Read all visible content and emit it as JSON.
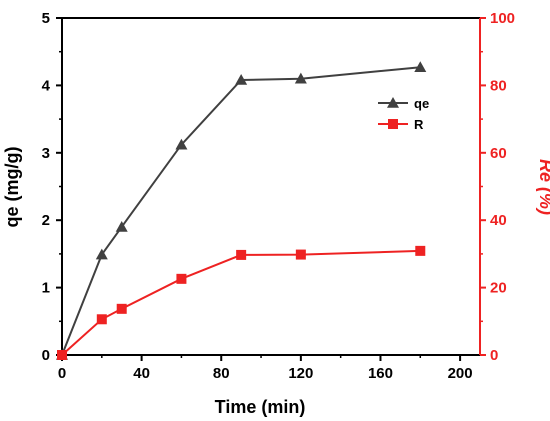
{
  "chart_data": {
    "type": "line",
    "title": "",
    "xlabel": "Time (min)",
    "ylabel_left": "qe (mg/g)",
    "ylabel_right": "Re (%)",
    "xlim": [
      0,
      210
    ],
    "ylim_left": [
      0,
      5
    ],
    "ylim_right": [
      0,
      100
    ],
    "x_ticks": [
      0,
      40,
      80,
      120,
      160,
      200
    ],
    "y_left_ticks": [
      0,
      1,
      2,
      3,
      4,
      5
    ],
    "y_right_ticks": [
      0,
      20,
      40,
      60,
      80,
      100
    ],
    "grid": false,
    "legend_position": "top-right",
    "x": [
      0,
      20,
      30,
      60,
      90,
      120,
      180
    ],
    "series": [
      {
        "name": "qe",
        "axis": "left",
        "marker": "triangle",
        "color": "#404040",
        "values": [
          0,
          1.49,
          1.9,
          3.12,
          4.08,
          4.1,
          4.27
        ]
      },
      {
        "name": "R",
        "axis": "right",
        "marker": "square",
        "color": "#ee2222",
        "values": [
          0,
          10.6,
          13.7,
          22.6,
          29.7,
          29.8,
          30.9
        ]
      }
    ],
    "colors": {
      "left_axis": "#000000",
      "right_axis": "#ee2222"
    }
  }
}
